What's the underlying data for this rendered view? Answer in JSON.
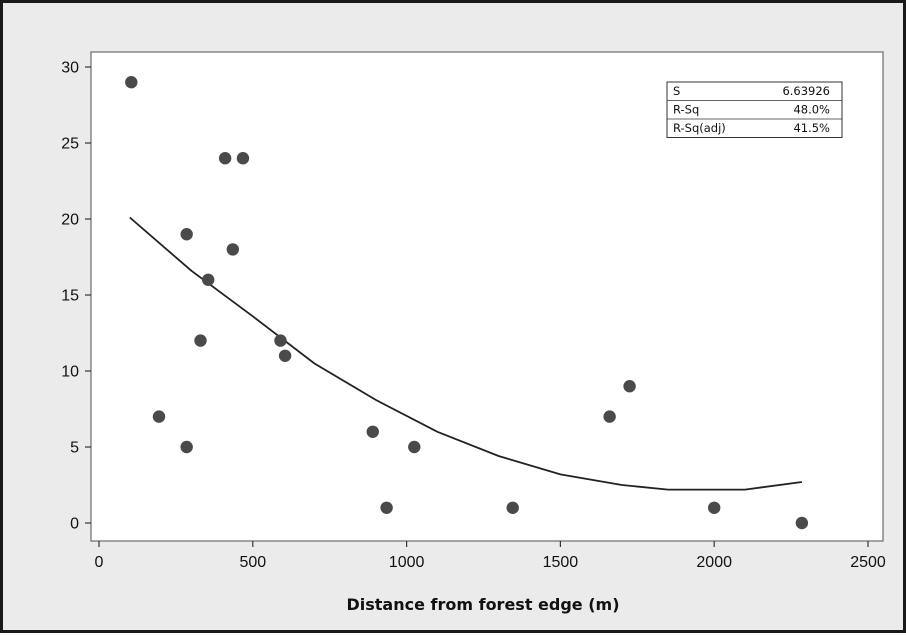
{
  "chart_data": {
    "type": "scatter",
    "title": "",
    "xlabel": "Distance from forest edge (m)",
    "ylabel": "",
    "xlim": [
      0,
      2500
    ],
    "ylim": [
      0,
      30
    ],
    "xticks": [
      0,
      500,
      1000,
      1500,
      2000,
      2500
    ],
    "yticks": [
      0,
      5,
      10,
      15,
      20,
      25,
      30
    ],
    "grid": false,
    "points": [
      {
        "x": 105,
        "y": 29
      },
      {
        "x": 195,
        "y": 7
      },
      {
        "x": 285,
        "y": 19
      },
      {
        "x": 285,
        "y": 5
      },
      {
        "x": 330,
        "y": 12
      },
      {
        "x": 355,
        "y": 16
      },
      {
        "x": 410,
        "y": 24
      },
      {
        "x": 435,
        "y": 18
      },
      {
        "x": 468,
        "y": 24
      },
      {
        "x": 590,
        "y": 12
      },
      {
        "x": 605,
        "y": 11
      },
      {
        "x": 890,
        "y": 6
      },
      {
        "x": 935,
        "y": 1
      },
      {
        "x": 1025,
        "y": 5
      },
      {
        "x": 1345,
        "y": 1
      },
      {
        "x": 1660,
        "y": 7
      },
      {
        "x": 1725,
        "y": 9
      },
      {
        "x": 2000,
        "y": 1
      },
      {
        "x": 2285,
        "y": 0
      }
    ],
    "fit": {
      "type": "quadratic",
      "x": [
        100,
        300,
        500,
        700,
        900,
        1100,
        1300,
        1500,
        1700,
        1850,
        2100,
        2285
      ],
      "y": [
        20.1,
        16.6,
        13.6,
        10.5,
        8.1,
        6.0,
        4.4,
        3.2,
        2.5,
        2.2,
        2.2,
        2.7
      ]
    },
    "stats": [
      {
        "label": "S",
        "value": "6.63926"
      },
      {
        "label": "R-Sq",
        "value": "48.0%"
      },
      {
        "label": "R-Sq(adj)",
        "value": "41.5%"
      }
    ],
    "colors": {
      "background": "#ebebeb",
      "plot_area": "#ffffff",
      "markers": "#4a4a4a",
      "fit_line": "#222222"
    }
  }
}
